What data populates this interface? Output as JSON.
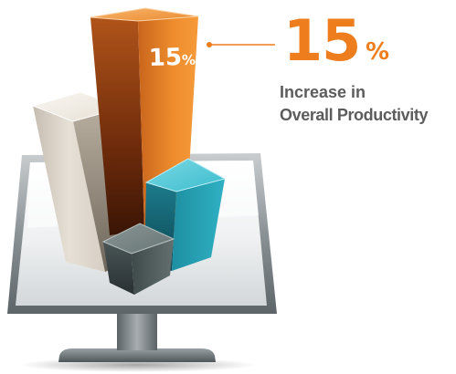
{
  "bar_label": {
    "number": "15",
    "unit": "%"
  },
  "stat": {
    "value": "15",
    "unit": "%",
    "caption_line1": "Increase in",
    "caption_line2": "Overall Productivity"
  },
  "colors": {
    "accent": "#ee7d1d",
    "caption": "#5c5c5c",
    "bar_orange": "#ee8a2a",
    "bar_cream": "#ddd5c9",
    "bar_teal": "#2aa6b9",
    "bar_slate": "#5c6868",
    "monitor_frame": "#8a9194",
    "monitor_stand": "#7b8386"
  },
  "icons": {
    "connector": "callout-dot-line-icon"
  }
}
